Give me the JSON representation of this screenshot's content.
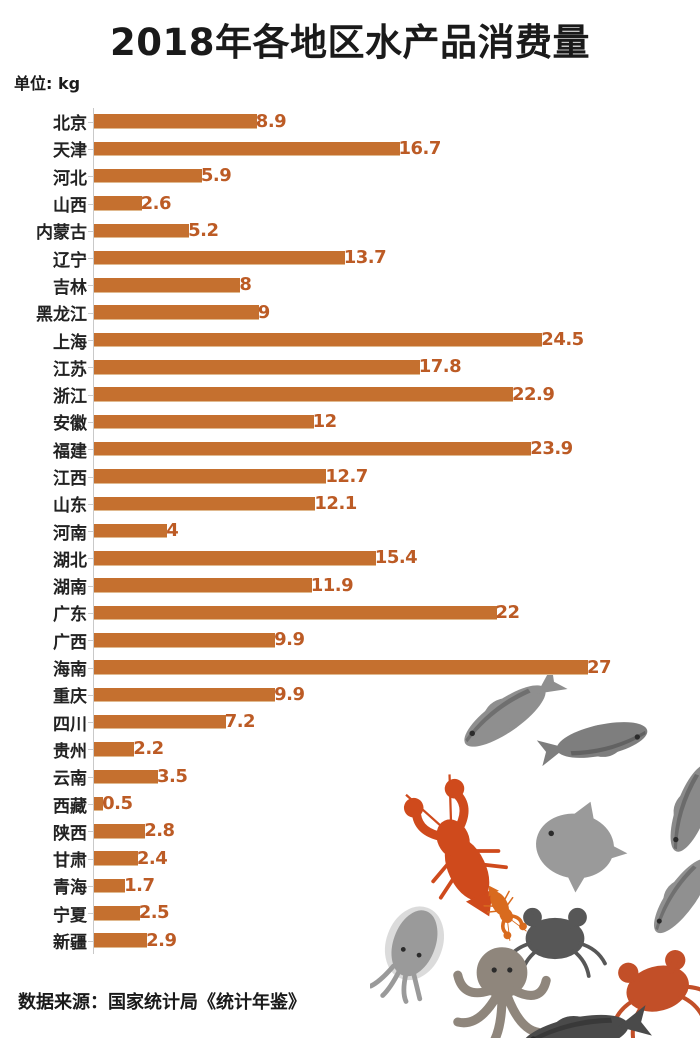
{
  "header": {
    "title": "2018年各地区水产品消费量",
    "unit_label": "单位: kg"
  },
  "footer": {
    "source": "数据来源：国家统计局《统计年鉴》"
  },
  "chart_data": {
    "type": "bar",
    "orientation": "horizontal",
    "title": "2018年各地区水产品消费量",
    "unit": "kg",
    "categories": [
      "北京",
      "天津",
      "河北",
      "山西",
      "内蒙古",
      "辽宁",
      "吉林",
      "黑龙江",
      "上海",
      "江苏",
      "浙江",
      "安徽",
      "福建",
      "江西",
      "山东",
      "河南",
      "湖北",
      "湖南",
      "广东",
      "广西",
      "海南",
      "重庆",
      "四川",
      "贵州",
      "云南",
      "西藏",
      "陕西",
      "甘肃",
      "青海",
      "宁夏",
      "新疆"
    ],
    "values": [
      8.9,
      16.7,
      5.9,
      2.6,
      5.2,
      13.7,
      8,
      9,
      24.5,
      17.8,
      22.9,
      12,
      23.9,
      12.7,
      12.1,
      4,
      15.4,
      11.9,
      22,
      9.9,
      27,
      9.9,
      7.2,
      2.2,
      3.5,
      0.5,
      2.8,
      2.4,
      1.7,
      2.5,
      2.9
    ],
    "xlim": [
      0,
      27
    ],
    "grid": false,
    "value_labels_shown": true,
    "bar_color": "#C5702F",
    "value_label_color": "#BC5B25",
    "source": "数据来源：国家统计局《统计年鉴》"
  },
  "decor": {
    "collage": "seafood-collage",
    "items": [
      "gray-fish",
      "bream-fish",
      "side-fish",
      "pomfret-fish",
      "red-crayfish",
      "small-crayfish",
      "dark-crab",
      "red-crab",
      "cuttlefish",
      "octopus",
      "dark-fish"
    ]
  }
}
